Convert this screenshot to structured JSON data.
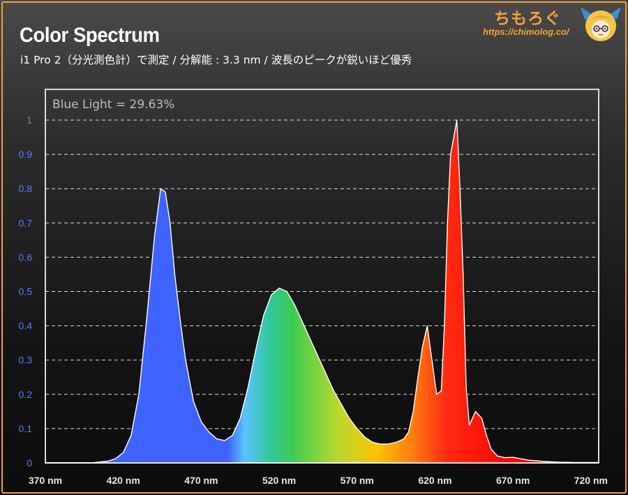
{
  "header": {
    "title": "Color Spectrum",
    "subtitle": "i1 Pro 2（分光測色計）で測定 / 分解能 : 3.3 nm / 波長のピークが鋭いほど優秀"
  },
  "brand": {
    "name": "ちもろぐ",
    "url": "https://chimolog.co/"
  },
  "colors": {
    "frame": "#f0a13a",
    "ytick": "#5b7cff",
    "grid": "#ffffff",
    "spectrum_outline": "#ffffff"
  },
  "icons": {
    "avatar": "mascot-avatar-icon"
  },
  "chart_data": {
    "type": "area",
    "annotation": "Blue Light = 29.63%",
    "xlabel": "",
    "ylabel": "",
    "xlim": [
      370,
      725
    ],
    "ylim": [
      0,
      1
    ],
    "x_ticks": [
      370,
      420,
      470,
      520,
      570,
      620,
      670,
      720
    ],
    "x_tick_labels": [
      "370 nm",
      "420 nm",
      "470 nm",
      "520 nm",
      "570 nm",
      "620 nm",
      "670 nm",
      "720 nm"
    ],
    "y_ticks": [
      0,
      0.1,
      0.2,
      0.3,
      0.4,
      0.5,
      0.6,
      0.7,
      0.8,
      0.9,
      1
    ],
    "y_tick_labels": [
      "0",
      "0.1",
      "0.2",
      "0.3",
      "0.4",
      "0.5",
      "0.6",
      "0.7",
      "0.8",
      "0.9",
      "1"
    ],
    "grid": "horizontal-dashed",
    "x": [
      370,
      400,
      410,
      415,
      420,
      425,
      430,
      435,
      440,
      444,
      447,
      450,
      453,
      457,
      460,
      465,
      470,
      475,
      480,
      485,
      490,
      495,
      500,
      505,
      510,
      515,
      520,
      525,
      530,
      535,
      540,
      545,
      550,
      555,
      560,
      565,
      570,
      575,
      580,
      585,
      590,
      595,
      600,
      603,
      606,
      609,
      612,
      615,
      618,
      621,
      624,
      626,
      628,
      630,
      632,
      634,
      636,
      638,
      640,
      642,
      644,
      646,
      648,
      650,
      653,
      656,
      660,
      665,
      670,
      675,
      680,
      690,
      700,
      710,
      720,
      725
    ],
    "values": [
      0.0,
      0.0,
      0.005,
      0.012,
      0.03,
      0.08,
      0.2,
      0.42,
      0.66,
      0.8,
      0.79,
      0.7,
      0.55,
      0.4,
      0.3,
      0.18,
      0.12,
      0.09,
      0.07,
      0.065,
      0.08,
      0.13,
      0.22,
      0.33,
      0.43,
      0.49,
      0.51,
      0.5,
      0.46,
      0.41,
      0.36,
      0.31,
      0.26,
      0.21,
      0.17,
      0.13,
      0.1,
      0.075,
      0.06,
      0.055,
      0.055,
      0.06,
      0.07,
      0.09,
      0.15,
      0.25,
      0.34,
      0.4,
      0.3,
      0.2,
      0.21,
      0.4,
      0.7,
      0.9,
      0.95,
      1.0,
      0.8,
      0.55,
      0.22,
      0.11,
      0.13,
      0.15,
      0.14,
      0.13,
      0.08,
      0.04,
      0.02,
      0.015,
      0.016,
      0.012,
      0.008,
      0.004,
      0.002,
      0.001,
      0.001,
      0.001
    ]
  }
}
